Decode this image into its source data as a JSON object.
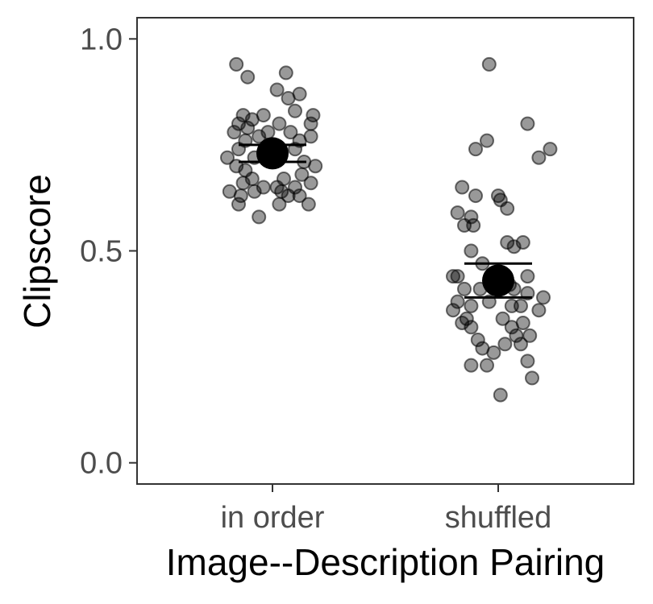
{
  "chart_data": {
    "type": "scatter",
    "xlabel": "Image--Description Pairing",
    "ylabel": "Clipscore",
    "categories": [
      "in order",
      "shuffled"
    ],
    "ylim": [
      -0.05,
      1.05
    ],
    "yticks": [
      {
        "value": 0.0,
        "label": "0.0"
      },
      {
        "value": 0.5,
        "label": "0.5"
      },
      {
        "value": 1.0,
        "label": "1.0"
      }
    ],
    "grid": false,
    "legend": "none",
    "colors": {
      "point_fill": "#000000",
      "point_opacity": 0.4,
      "summary": "#000000",
      "panel_border": "#333333"
    },
    "series": [
      {
        "category": "in order",
        "mean": 0.73,
        "ci": [
          0.71,
          0.75
        ],
        "points": [
          [
            -0.16,
            0.94
          ],
          [
            -0.11,
            0.91
          ],
          [
            0.06,
            0.92
          ],
          [
            0.02,
            0.88
          ],
          [
            0.12,
            0.87
          ],
          [
            0.07,
            0.86
          ],
          [
            -0.13,
            0.82
          ],
          [
            -0.04,
            0.82
          ],
          [
            0.1,
            0.83
          ],
          [
            0.18,
            0.82
          ],
          [
            -0.09,
            0.81
          ],
          [
            0.17,
            0.8
          ],
          [
            -0.15,
            0.8
          ],
          [
            -0.11,
            0.79
          ],
          [
            0.03,
            0.8
          ],
          [
            -0.17,
            0.78
          ],
          [
            -0.02,
            0.78
          ],
          [
            0.08,
            0.78
          ],
          [
            0.17,
            0.77
          ],
          [
            -0.06,
            0.77
          ],
          [
            -0.12,
            0.76
          ],
          [
            0.12,
            0.76
          ],
          [
            -0.15,
            0.74
          ],
          [
            0.1,
            0.74
          ],
          [
            -0.2,
            0.72
          ],
          [
            -0.08,
            0.72
          ],
          [
            0.14,
            0.71
          ],
          [
            0.19,
            0.7
          ],
          [
            -0.16,
            0.7
          ],
          [
            -0.12,
            0.69
          ],
          [
            0.13,
            0.68
          ],
          [
            0.05,
            0.67
          ],
          [
            -0.09,
            0.67
          ],
          [
            0.17,
            0.66
          ],
          [
            -0.13,
            0.66
          ],
          [
            -0.04,
            0.65
          ],
          [
            0.02,
            0.65
          ],
          [
            0.1,
            0.65
          ],
          [
            -0.08,
            0.64
          ],
          [
            -0.19,
            0.64
          ],
          [
            0.04,
            0.64
          ],
          [
            -0.14,
            0.63
          ],
          [
            0.12,
            0.63
          ],
          [
            0.07,
            0.63
          ],
          [
            0.16,
            0.61
          ],
          [
            -0.15,
            0.61
          ],
          [
            0.03,
            0.61
          ],
          [
            -0.06,
            0.58
          ]
        ]
      },
      {
        "category": "shuffled",
        "mean": 0.43,
        "ci": [
          0.39,
          0.47
        ],
        "points": [
          [
            -0.04,
            0.94
          ],
          [
            0.13,
            0.8
          ],
          [
            -0.05,
            0.76
          ],
          [
            -0.1,
            0.74
          ],
          [
            0.23,
            0.74
          ],
          [
            0.18,
            0.72
          ],
          [
            -0.16,
            0.65
          ],
          [
            0.0,
            0.63
          ],
          [
            -0.1,
            0.63
          ],
          [
            0.01,
            0.62
          ],
          [
            0.04,
            0.6
          ],
          [
            -0.18,
            0.59
          ],
          [
            -0.12,
            0.58
          ],
          [
            -0.15,
            0.56
          ],
          [
            -0.11,
            0.56
          ],
          [
            0.04,
            0.52
          ],
          [
            0.11,
            0.52
          ],
          [
            0.07,
            0.51
          ],
          [
            -0.12,
            0.5
          ],
          [
            -0.07,
            0.47
          ],
          [
            0.13,
            0.44
          ],
          [
            -0.2,
            0.44
          ],
          [
            -0.18,
            0.44
          ],
          [
            -0.15,
            0.41
          ],
          [
            -0.08,
            0.41
          ],
          [
            0.07,
            0.41
          ],
          [
            0.13,
            0.4
          ],
          [
            0.2,
            0.39
          ],
          [
            -0.04,
            0.38
          ],
          [
            -0.18,
            0.38
          ],
          [
            0.06,
            0.37
          ],
          [
            -0.12,
            0.37
          ],
          [
            0.1,
            0.37
          ],
          [
            -0.2,
            0.36
          ],
          [
            0.18,
            0.36
          ],
          [
            -0.14,
            0.34
          ],
          [
            0.02,
            0.34
          ],
          [
            -0.16,
            0.33
          ],
          [
            0.11,
            0.33
          ],
          [
            0.06,
            0.32
          ],
          [
            -0.12,
            0.32
          ],
          [
            0.08,
            0.3
          ],
          [
            0.14,
            0.3
          ],
          [
            -0.09,
            0.29
          ],
          [
            0.03,
            0.28
          ],
          [
            -0.07,
            0.27
          ],
          [
            -0.12,
            0.23
          ],
          [
            -0.05,
            0.23
          ],
          [
            0.13,
            0.24
          ],
          [
            0.15,
            0.2
          ],
          [
            0.01,
            0.16
          ],
          [
            0.1,
            0.28
          ],
          [
            -0.02,
            0.26
          ],
          [
            0.05,
            0.42
          ]
        ]
      }
    ]
  }
}
